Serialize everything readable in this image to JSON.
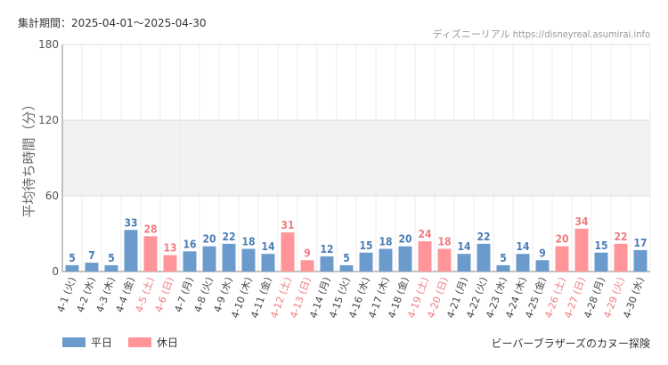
{
  "header": {
    "period_label": "集計期間：2025-04-01〜2025-04-30",
    "credit": "ディズニーリアル https://disneyreal.asumirai.info"
  },
  "footer": {
    "source_title": "ビーバーブラザーズのカヌー探険"
  },
  "legend": {
    "weekday_label": "平日",
    "holiday_label": "休日"
  },
  "colors": {
    "weekday": "#6b9bcd",
    "holiday": "#ff9599",
    "weekday_text": "#4a7cb5",
    "holiday_text": "#f07a80",
    "band": "#f2f2f2",
    "grid": "#dddddd"
  },
  "chart_data": {
    "type": "bar",
    "ylabel": "平均待ち時間（分）",
    "ylim": [
      0,
      180
    ],
    "yticks": [
      0,
      60,
      120,
      180
    ],
    "categories": [
      "4-1 (火)",
      "4-2 (水)",
      "4-3 (木)",
      "4-4 (金)",
      "4-5 (土)",
      "4-6 (日)",
      "4-7 (月)",
      "4-8 (火)",
      "4-9 (水)",
      "4-10 (木)",
      "4-11 (金)",
      "4-12 (土)",
      "4-13 (日)",
      "4-14 (月)",
      "4-15 (火)",
      "4-16 (水)",
      "4-17 (木)",
      "4-18 (金)",
      "4-19 (土)",
      "4-20 (日)",
      "4-21 (月)",
      "4-22 (火)",
      "4-23 (水)",
      "4-24 (木)",
      "4-25 (金)",
      "4-26 (土)",
      "4-27 (日)",
      "4-28 (月)",
      "4-29 (火)",
      "4-30 (水)"
    ],
    "values": [
      5,
      7,
      5,
      33,
      28,
      13,
      16,
      20,
      22,
      18,
      14,
      31,
      9,
      12,
      5,
      15,
      18,
      20,
      24,
      18,
      14,
      22,
      5,
      14,
      9,
      20,
      34,
      15,
      22,
      17
    ],
    "holiday": [
      false,
      false,
      false,
      false,
      true,
      true,
      false,
      false,
      false,
      false,
      false,
      true,
      true,
      false,
      false,
      false,
      false,
      false,
      true,
      true,
      false,
      false,
      false,
      false,
      false,
      true,
      true,
      false,
      true,
      false
    ]
  }
}
